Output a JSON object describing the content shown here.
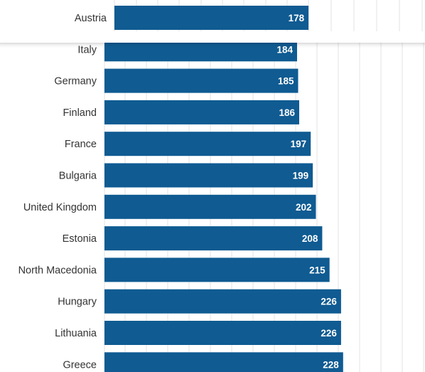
{
  "chart_data": {
    "type": "bar",
    "orientation": "horizontal",
    "categories": [
      "Austria",
      "Italy",
      "Germany",
      "Finland",
      "France",
      "Bulgaria",
      "United Kingdom",
      "Estonia",
      "North Macedonia",
      "Hungary",
      "Lithuania",
      "Greece"
    ],
    "values": [
      178,
      184,
      185,
      186,
      197,
      199,
      202,
      208,
      215,
      226,
      226,
      228
    ],
    "title": "",
    "xlabel": "",
    "ylabel": "",
    "grid": true,
    "bar_color": "#0f5b92",
    "value_label_color": "#ffffff",
    "category_label_color": "#333333",
    "gridline_color": "#e3e3e3"
  }
}
